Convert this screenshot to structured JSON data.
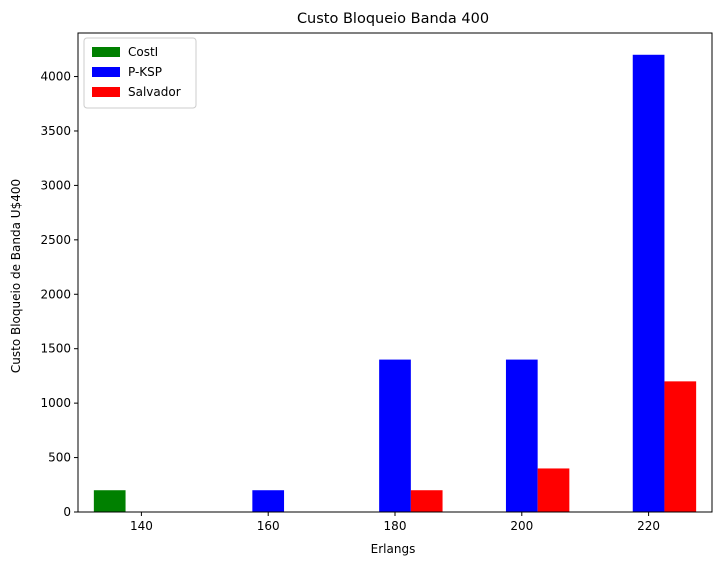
{
  "chart_data": {
    "type": "bar",
    "title": "Custo Bloqueio Banda 400",
    "xlabel": "Erlangs",
    "ylabel": "Custo Bloqueio de Banda U$400",
    "categories": [
      "140",
      "160",
      "180",
      "200",
      "220"
    ],
    "series": [
      {
        "name": "CostI",
        "color": "#008000",
        "values": [
          200,
          0,
          0,
          0,
          0
        ]
      },
      {
        "name": "P-KSP",
        "color": "#0000ff",
        "values": [
          0,
          200,
          1400,
          1400,
          4200
        ]
      },
      {
        "name": "Salvador",
        "color": "#ff0000",
        "values": [
          0,
          0,
          200,
          400,
          1200
        ]
      }
    ],
    "ylim": [
      0,
      4400
    ],
    "yticks": [
      0,
      500,
      1000,
      1500,
      2000,
      2500,
      3000,
      3500,
      4000
    ],
    "legend_position": "top-left",
    "grid": false
  }
}
